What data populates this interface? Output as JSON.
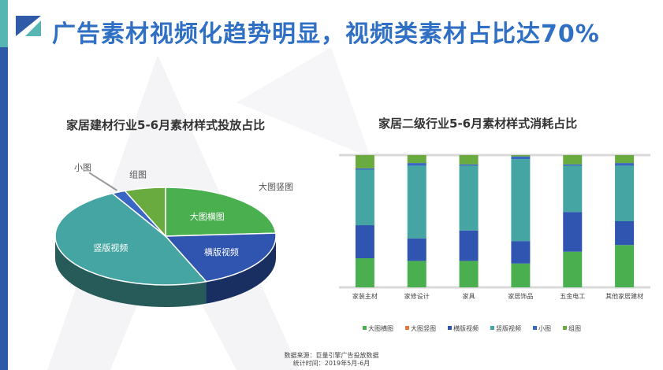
{
  "header": {
    "title": "广告素材视频化趋势明显，视频类素材占比达70%"
  },
  "colors": {
    "big_horizontal": "#4aaf4f",
    "big_vertical": "#e07b39",
    "horizontal_video": "#2f55b0",
    "vertical_video": "#45a5a2",
    "small": "#3a66c4",
    "group": "#6aab3f",
    "title": "#2f6fc4",
    "gridline": "#d9d9d9"
  },
  "chart_data": [
    {
      "type": "pie",
      "title": "家居建材行业5-6月素材样式投放占比",
      "slices": [
        {
          "label": "大图横图",
          "value": 24
        },
        {
          "label": "大图竖图",
          "value": 0
        },
        {
          "label": "横版视频",
          "value": 20
        },
        {
          "label": "竖版视频",
          "value": 48
        },
        {
          "label": "小图",
          "value": 2
        },
        {
          "label": "组图",
          "value": 6
        }
      ]
    },
    {
      "type": "bar",
      "stacked": true,
      "title": "家居二级行业5-6月素材样式消耗占比",
      "categories": [
        "家装主材",
        "家修设计",
        "家具",
        "家居饰品",
        "五金电工",
        "其他家居建材"
      ],
      "series": [
        {
          "name": "大图横图",
          "values": [
            22,
            20,
            20,
            18,
            27,
            32
          ]
        },
        {
          "name": "大图竖图",
          "values": [
            0,
            0,
            0,
            0,
            0,
            0
          ]
        },
        {
          "name": "横版视频",
          "values": [
            25,
            17,
            23,
            17,
            30,
            18
          ]
        },
        {
          "name": "竖版视频",
          "values": [
            42,
            55,
            49,
            62,
            35,
            42
          ]
        },
        {
          "name": "小图",
          "values": [
            1,
            2,
            1,
            2,
            1,
            2
          ]
        },
        {
          "name": "组图",
          "values": [
            10,
            6,
            7,
            1,
            7,
            6
          ]
        }
      ],
      "ylim": [
        0,
        100
      ]
    }
  ],
  "footer": {
    "source": "数据来源：巨量引擎广告投放数据",
    "time": "统计时间：2019年5月-6月"
  }
}
